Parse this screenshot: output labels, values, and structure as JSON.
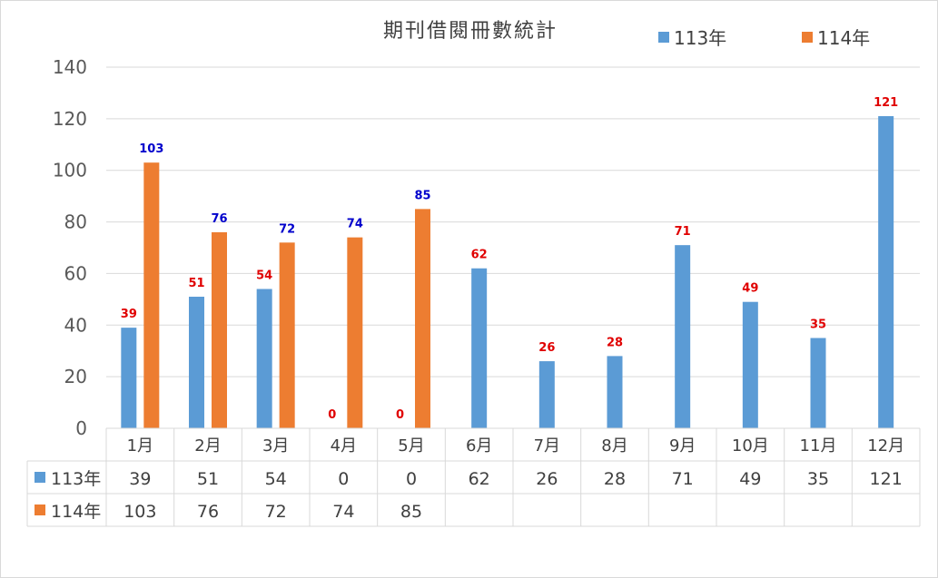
{
  "chart_data": {
    "type": "bar",
    "title": "期刊借閱冊數統計",
    "categories": [
      "1月",
      "2月",
      "3月",
      "4月",
      "5月",
      "6月",
      "7月",
      "8月",
      "9月",
      "10月",
      "11月",
      "12月"
    ],
    "series": [
      {
        "name": "113年",
        "color": "#5b9bd5",
        "label_color": "#e00000",
        "values": [
          39,
          51,
          54,
          0,
          0,
          62,
          26,
          28,
          71,
          49,
          35,
          121
        ]
      },
      {
        "name": "114年",
        "color": "#ed7d31",
        "label_color": "#0000cc",
        "values": [
          103,
          76,
          72,
          74,
          85,
          null,
          null,
          null,
          null,
          null,
          null,
          null
        ]
      }
    ],
    "ylim": [
      0,
      140
    ],
    "yticks": [
      0,
      20,
      40,
      60,
      80,
      100,
      120,
      140
    ],
    "grid": true,
    "legend": "top-right",
    "data_table": true
  }
}
